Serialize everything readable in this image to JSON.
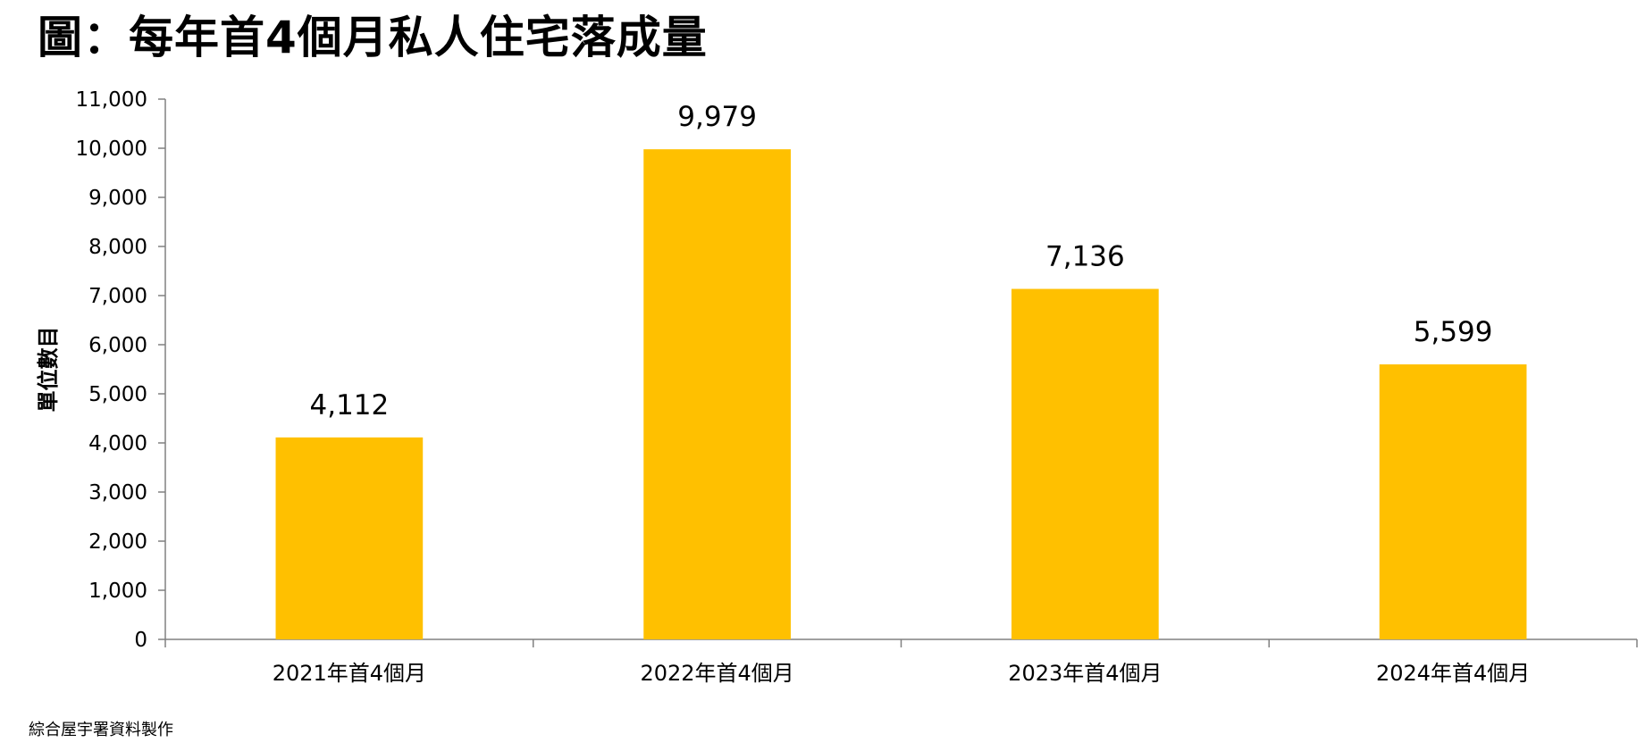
{
  "page": {
    "title": "圖：每年首4個月私人住宅落成量",
    "source": "綜合屋宇署資料製作"
  },
  "chart_data": {
    "type": "bar",
    "title": "圖：每年首4個月私人住宅落成量",
    "categories": [
      "2021年首4個月",
      "2022年首4個月",
      "2023年首4個月",
      "2024年首4個月"
    ],
    "values": [
      4112,
      9979,
      7136,
      5599
    ],
    "data_labels": [
      "4,112",
      "9,979",
      "7,136",
      "5,599"
    ],
    "xlabel": "",
    "ylabel": "單位數目",
    "ylim": [
      0,
      11000
    ],
    "yticks": [
      0,
      1000,
      2000,
      3000,
      4000,
      5000,
      6000,
      7000,
      8000,
      9000,
      10000,
      11000
    ],
    "ytick_labels": [
      "0",
      "1,000",
      "2,000",
      "3,000",
      "4,000",
      "5,000",
      "6,000",
      "7,000",
      "8,000",
      "9,000",
      "10,000",
      "11,000"
    ],
    "grid": false,
    "legend": "none",
    "bar_color": "#FFC000",
    "axis_color": "#808080"
  }
}
